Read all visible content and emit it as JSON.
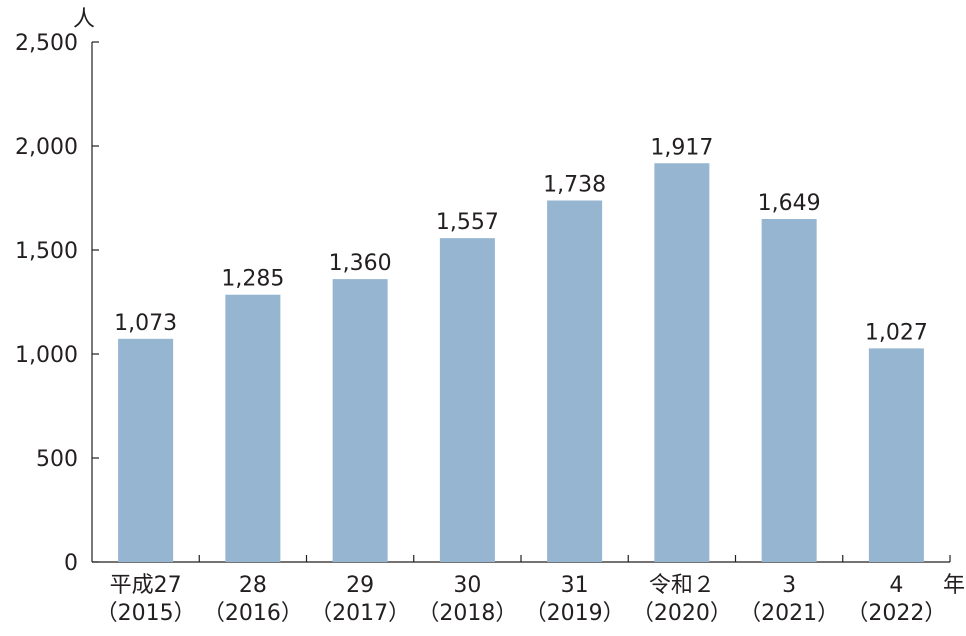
{
  "chart_data": {
    "type": "bar",
    "categories": [
      "平成27\n（2015）",
      "28\n（2016）",
      "29\n（2017）",
      "30\n（2018）",
      "31\n（2019）",
      "令和２\n（2020）",
      "3\n（2021）",
      "4\n（2022）"
    ],
    "values": [
      1073,
      1285,
      1360,
      1557,
      1738,
      1917,
      1649,
      1027
    ],
    "data_labels": [
      "1,073",
      "1,285",
      "1,360",
      "1,557",
      "1,738",
      "1,917",
      "1,649",
      "1,027"
    ],
    "ylabel": "人",
    "xlabel": "年",
    "ylim": [
      0,
      2500
    ],
    "yticks": [
      0,
      500,
      1000,
      1500,
      2000,
      2500
    ],
    "ytick_labels": [
      "0",
      "500",
      "1,000",
      "1,500",
      "2,000",
      "2,500"
    ],
    "grid": false,
    "bar_color": "#95b5d0",
    "axis_color": "#231f20"
  }
}
